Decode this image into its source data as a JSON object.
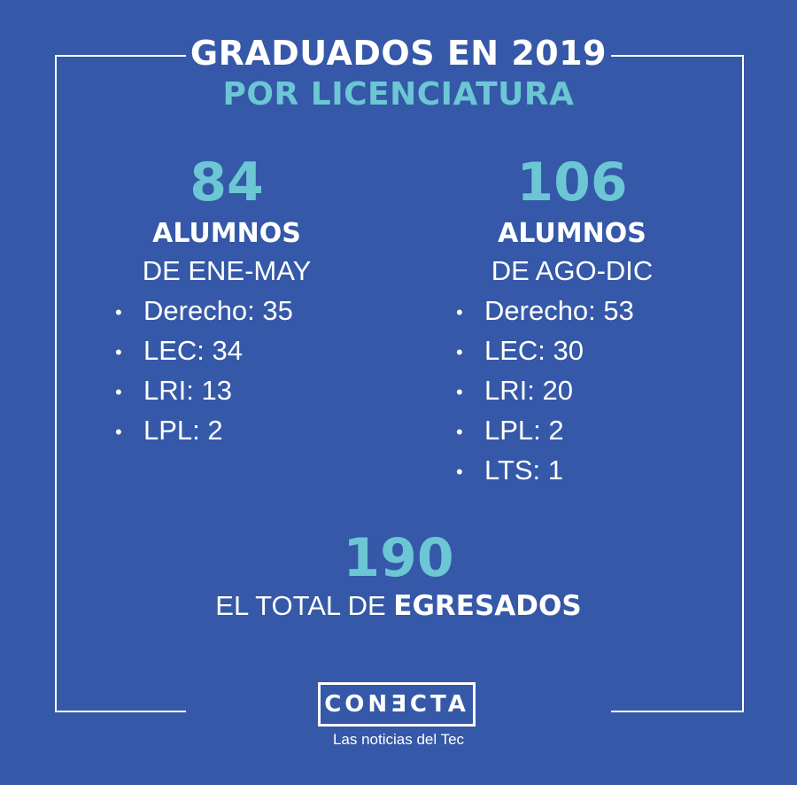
{
  "title": {
    "main": "GRADUADOS EN 2019",
    "sub": "POR LICENCIATURA"
  },
  "colors": {
    "background": "#3558a8",
    "accent": "#6cc6d4",
    "text": "#ffffff"
  },
  "left": {
    "count": "84",
    "unit": "ALUMNOS",
    "period": "DE ENE-MAY",
    "items": [
      "Derecho: 35",
      "LEC: 34",
      "LRI: 13",
      "LPL: 2"
    ]
  },
  "right": {
    "count": "106",
    "unit": "ALUMNOS",
    "period": "DE AGO-DIC",
    "items": [
      "Derecho: 53",
      "LEC: 30",
      "LRI: 20",
      "LPL: 2",
      "LTS: 1"
    ]
  },
  "total": {
    "count": "190",
    "label_prefix": "EL TOTAL DE",
    "label_bold": "EGRESADOS"
  },
  "brand": {
    "logo": "CONƎCTA",
    "tagline": "Las noticias del Tec"
  }
}
